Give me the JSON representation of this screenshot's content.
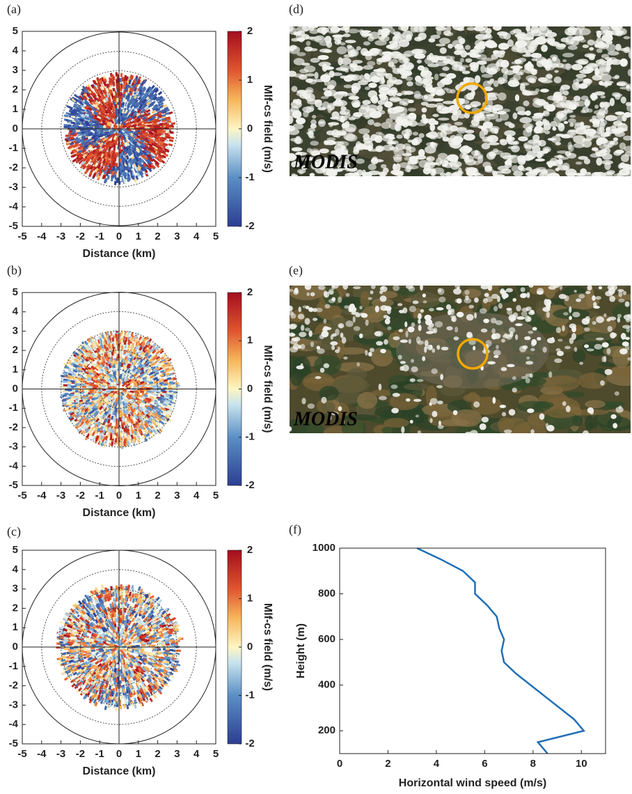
{
  "chart_data": [
    {
      "type": "polar-field",
      "panel_label": "(a)",
      "xlabel": "Distance (km)",
      "xlim": [
        -5,
        5
      ],
      "ylim": [
        -5,
        5
      ],
      "xticks": [
        -5,
        -4,
        -3,
        -2,
        -1,
        0,
        1,
        2,
        3,
        4,
        5
      ],
      "yticks": [
        -5,
        -4,
        -3,
        -2,
        -1,
        0,
        1,
        2,
        3,
        4,
        5
      ],
      "rings": [
        3,
        4
      ],
      "outer_ring": 5,
      "colorbar_label": "Mlf-cs field (m/s)",
      "clim": [
        -2,
        2
      ],
      "cticks": [
        -2,
        -1,
        0,
        1,
        2
      ]
    },
    {
      "type": "polar-field",
      "panel_label": "(b)",
      "xlabel": "Distance (km)",
      "xlim": [
        -5,
        5
      ],
      "ylim": [
        -5,
        5
      ],
      "xticks": [
        -5,
        -4,
        -3,
        -2,
        -1,
        0,
        1,
        2,
        3,
        4,
        5
      ],
      "yticks": [
        -5,
        -4,
        -3,
        -2,
        -1,
        0,
        1,
        2,
        3,
        4,
        5
      ],
      "rings": [
        1,
        2,
        3,
        4
      ],
      "outer_ring": 5,
      "colorbar_label": "Mlf-cs field (m/s)",
      "clim": [
        -2,
        2
      ],
      "cticks": [
        -2,
        -1,
        0,
        1,
        2
      ]
    },
    {
      "type": "polar-field",
      "panel_label": "(c)",
      "xlabel": "Distance (km)",
      "xlim": [
        -5,
        5
      ],
      "ylim": [
        -5,
        5
      ],
      "xticks": [
        -5,
        -4,
        -3,
        -2,
        -1,
        0,
        1,
        2,
        3,
        4,
        5
      ],
      "yticks": [
        -5,
        -4,
        -3,
        -2,
        -1,
        0,
        1,
        2,
        3,
        4,
        5
      ],
      "rings": [
        2,
        3,
        4
      ],
      "outer_ring": 5,
      "colorbar_label": "Mlf-cs field (m/s)",
      "clim": [
        -2,
        2
      ],
      "cticks": [
        -2,
        -1,
        0,
        1,
        2
      ]
    },
    {
      "type": "image",
      "panel_label": "(d)",
      "annotation": "MODIS"
    },
    {
      "type": "image",
      "panel_label": "(e)",
      "annotation": "MODIS"
    },
    {
      "type": "line",
      "panel_label": "(f)",
      "xlabel": "Horizontal wind speed (m/s)",
      "ylabel": "Height (m)",
      "xlim": [
        0,
        11
      ],
      "ylim": [
        100,
        1000
      ],
      "xticks": [
        0,
        2,
        4,
        6,
        8,
        10
      ],
      "yticks": [
        200,
        400,
        600,
        800,
        1000
      ],
      "series": [
        {
          "color": "#1f6fb5",
          "x": [
            8.6,
            8.2,
            10.1,
            9.7,
            9.1,
            8.5,
            7.9,
            7.3,
            6.8,
            6.7,
            6.8,
            6.6,
            6.5,
            6.1,
            5.6,
            5.6,
            5.1,
            4.2,
            3.2
          ],
          "values": [
            100,
            150,
            200,
            250,
            300,
            350,
            400,
            450,
            500,
            550,
            600,
            650,
            700,
            750,
            800,
            850,
            900,
            950,
            1000
          ]
        }
      ]
    }
  ]
}
